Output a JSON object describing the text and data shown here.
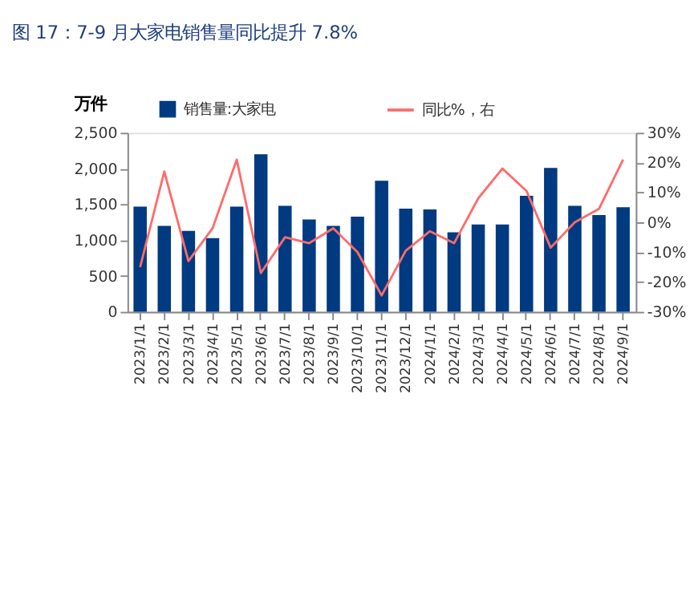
{
  "chart_data": {
    "type": "bar",
    "title": "图 17：7-9 月大家电销售量同比提升 7.8%",
    "ylabel": "万件",
    "categories": [
      "2023/1/1",
      "2023/2/1",
      "2023/3/1",
      "2023/4/1",
      "2023/5/1",
      "2023/6/1",
      "2023/7/1",
      "2023/8/1",
      "2023/9/1",
      "2023/10/1",
      "2023/11/1",
      "2023/12/1",
      "2024/1/1",
      "2024/2/1",
      "2024/3/1",
      "2024/4/1",
      "2024/5/1",
      "2024/6/1",
      "2024/7/1",
      "2024/8/1",
      "2024/9/1"
    ],
    "series": [
      {
        "name": "销售量:大家电",
        "color": "#003a80",
        "values": [
          1470,
          1200,
          1130,
          1030,
          1470,
          2200,
          1480,
          1290,
          1200,
          1330,
          1830,
          1440,
          1430,
          1110,
          1220,
          1220,
          1620,
          2010,
          1480,
          1350,
          1460
        ]
      },
      {
        "name": "同比%，右",
        "type": "line",
        "axis": "y2",
        "color": "#ff6b6b",
        "values": [
          -15,
          17,
          -13,
          -2,
          21,
          -17,
          -5,
          -7,
          -2,
          -10,
          -24.5,
          -9.5,
          -3,
          -7,
          8,
          18,
          10.5,
          -8.5,
          0,
          4.5,
          21
        ]
      }
    ],
    "ylim": [
      0,
      2500
    ],
    "yticks": [
      0,
      {
        "value": 500,
        "label": "500"
      },
      {
        "value": 1000,
        "label": "1,000"
      },
      {
        "value": 1500,
        "label": "1,500"
      },
      {
        "value": 2000,
        "label": "2,000"
      },
      {
        "value": 2500,
        "label": "2,500"
      }
    ],
    "y2lim": [
      -30,
      30
    ],
    "y2ticks": [
      {
        "value": -30,
        "label": "-30%"
      },
      {
        "value": -20,
        "label": "-20%"
      },
      {
        "value": -10,
        "label": "-10%"
      },
      {
        "value": 0,
        "label": "0%"
      },
      {
        "value": 10,
        "label": "10%"
      },
      {
        "value": 20,
        "label": "20%"
      },
      {
        "value": 30,
        "label": "30%"
      }
    ],
    "legend": "top",
    "grid": false
  }
}
